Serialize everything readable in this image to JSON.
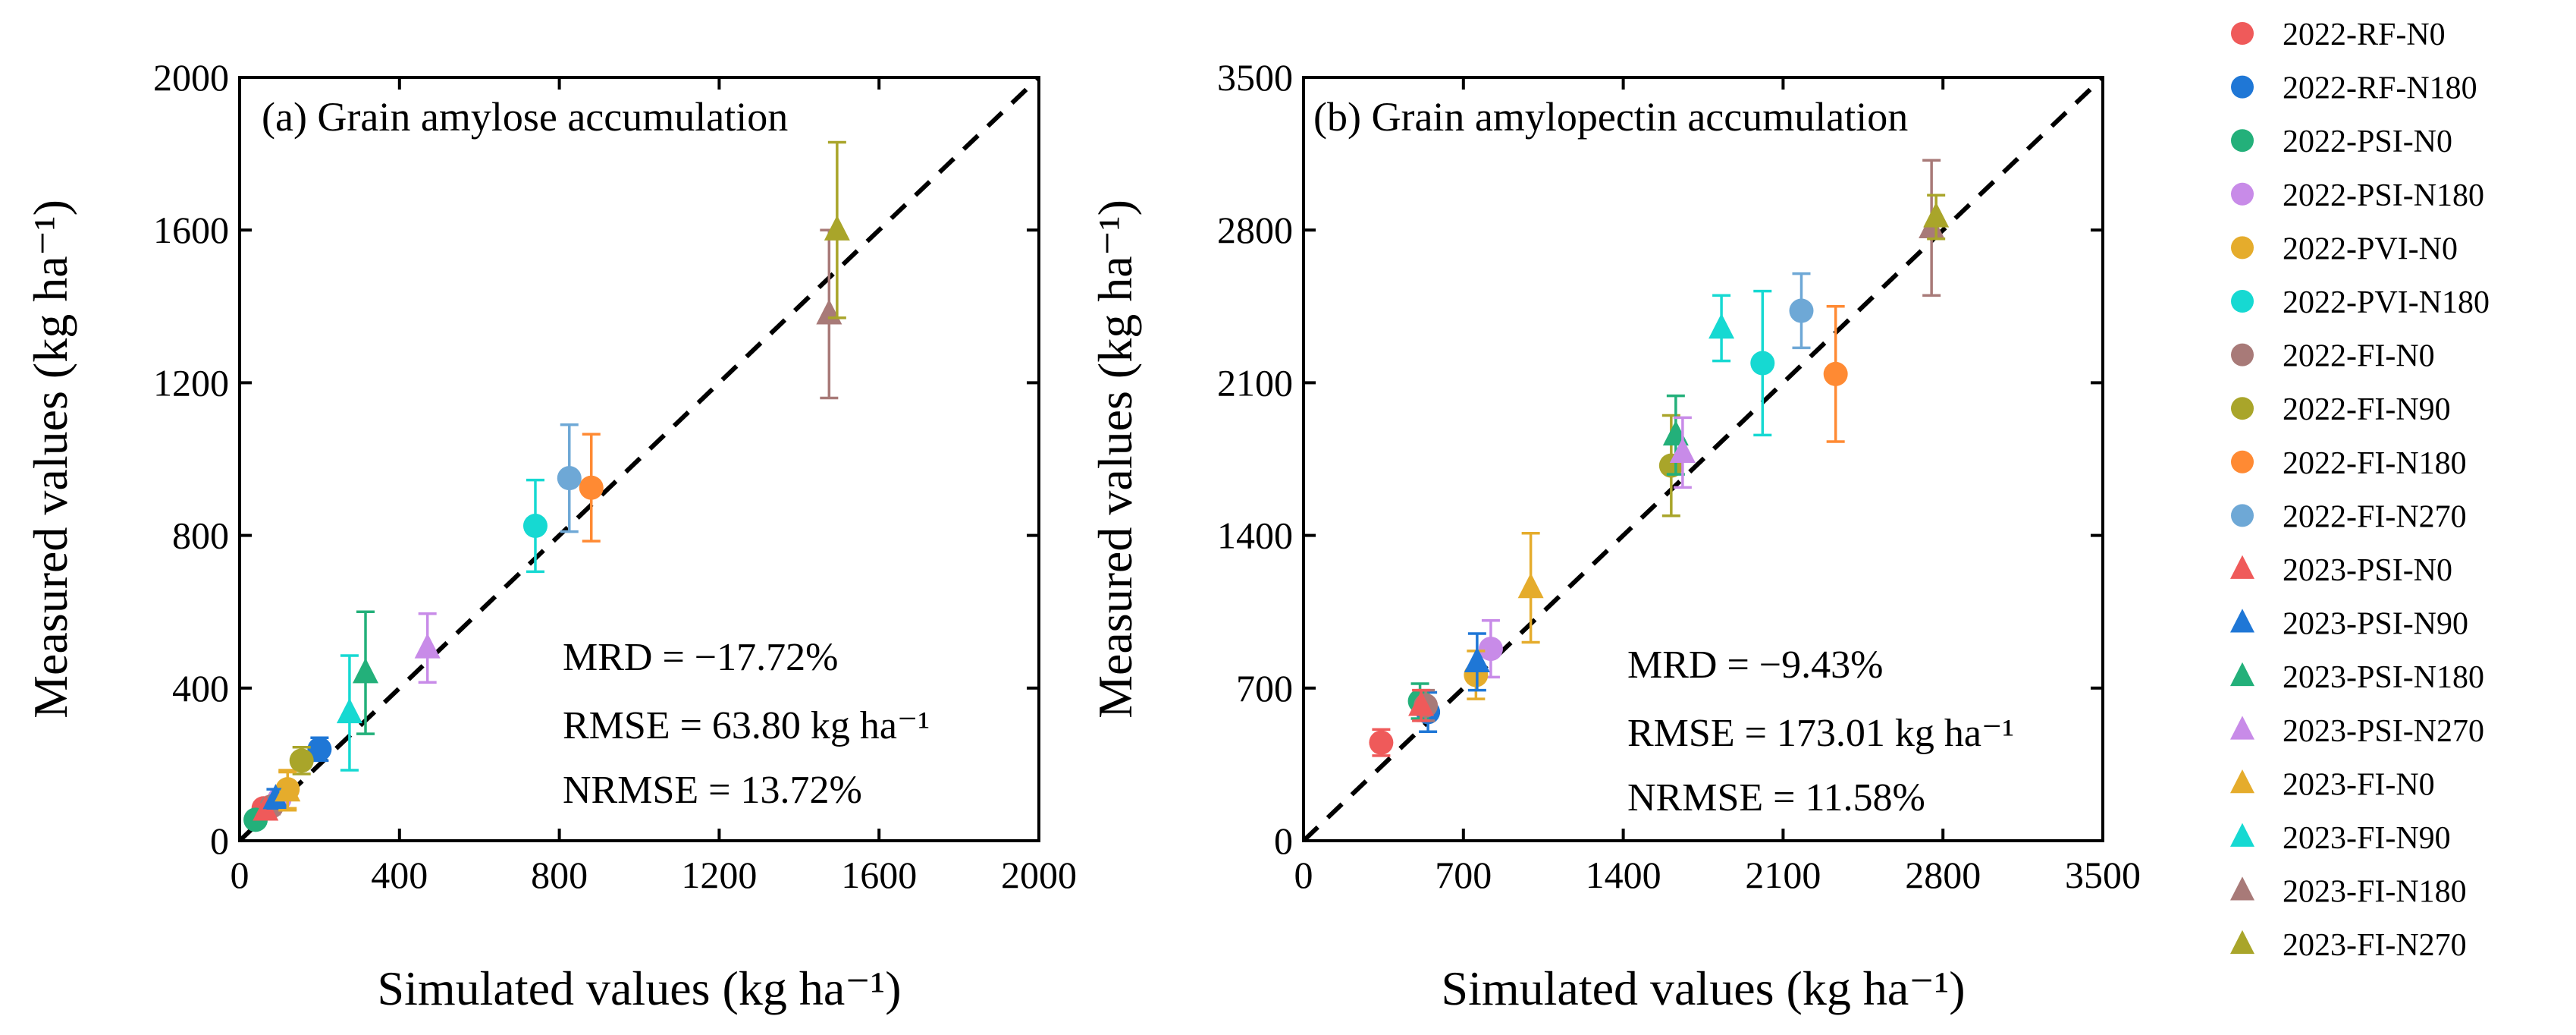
{
  "chart_data": [
    {
      "type": "scatter",
      "title": "(a) Grain amylose accumulation",
      "xlabel": "Simulated values (kg ha⁻¹)",
      "ylabel": "Measured values (kg ha⁻¹)",
      "xlim": [
        0,
        2000
      ],
      "ylim": [
        0,
        2000
      ],
      "xticks": [
        "0",
        "400",
        "800",
        "1200",
        "1600",
        "2000"
      ],
      "yticks": [
        "0",
        "400",
        "800",
        "1200",
        "1600",
        "2000"
      ],
      "reference_line": "1:1 dashed",
      "stats": [
        "MRD = −17.72%",
        "RMSE = 63.80 kg ha⁻¹",
        "NRMSE = 13.72%"
      ],
      "points": [
        {
          "series": "2022-RF-N0",
          "x": 60,
          "y": 85,
          "err": 15
        },
        {
          "series": "2022-RF-N180",
          "x": 200,
          "y": 240,
          "err": 30
        },
        {
          "series": "2022-PSI-N0",
          "x": 40,
          "y": 55,
          "err": 10
        },
        {
          "series": "2022-PSI-N180",
          "x": 100,
          "y": 110,
          "err": 25
        },
        {
          "series": "2022-PVI-N0",
          "x": 120,
          "y": 135,
          "err": 50
        },
        {
          "series": "2022-PVI-N180",
          "x": 740,
          "y": 825,
          "err": 120
        },
        {
          "series": "2022-FI-N0",
          "x": 80,
          "y": 90,
          "err": 20
        },
        {
          "series": "2022-FI-N90",
          "x": 155,
          "y": 210,
          "err": 35
        },
        {
          "series": "2022-FI-N180",
          "x": 880,
          "y": 925,
          "err": 140
        },
        {
          "series": "2022-FI-N270",
          "x": 825,
          "y": 950,
          "err": 140
        },
        {
          "series": "2023-PSI-N0",
          "x": 65,
          "y": 80,
          "err": 15
        },
        {
          "series": "2023-PSI-N90",
          "x": 90,
          "y": 110,
          "err": 25
        },
        {
          "series": "2023-PSI-N180",
          "x": 315,
          "y": 440,
          "err": 160
        },
        {
          "series": "2023-PSI-N270",
          "x": 470,
          "y": 505,
          "err": 90
        },
        {
          "series": "2023-FI-N0",
          "x": 120,
          "y": 130,
          "err": 50
        },
        {
          "series": "2023-FI-N90",
          "x": 275,
          "y": 335,
          "err": 150
        },
        {
          "series": "2023-FI-N180",
          "x": 1475,
          "y": 1380,
          "err": 220
        },
        {
          "series": "2023-FI-N270",
          "x": 1495,
          "y": 1600,
          "err": 230
        }
      ]
    },
    {
      "type": "scatter",
      "title": "(b) Grain amylopectin accumulation",
      "xlabel": "Simulated values (kg ha⁻¹)",
      "ylabel": "Measured values (kg ha⁻¹)",
      "xlim": [
        0,
        3500
      ],
      "ylim": [
        0,
        3500
      ],
      "xticks": [
        "0",
        "700",
        "1400",
        "2100",
        "2800",
        "3500"
      ],
      "yticks": [
        "0",
        "700",
        "1400",
        "2100",
        "2800",
        "3500"
      ],
      "reference_line": "1:1 dashed",
      "stats": [
        "MRD = −9.43%",
        "RMSE = 173.01 kg ha⁻¹",
        "NRMSE = 11.58%"
      ],
      "points": [
        {
          "series": "2022-RF-N0",
          "x": 340,
          "y": 450,
          "err": 60
        },
        {
          "series": "2022-RF-N180",
          "x": 545,
          "y": 590,
          "err": 90
        },
        {
          "series": "2022-PSI-N0",
          "x": 510,
          "y": 640,
          "err": 80
        },
        {
          "series": "2022-PSI-N180",
          "x": 820,
          "y": 880,
          "err": 130
        },
        {
          "series": "2022-PVI-N0",
          "x": 755,
          "y": 760,
          "err": 110
        },
        {
          "series": "2022-PVI-N180",
          "x": 2010,
          "y": 2190,
          "err": 330
        },
        {
          "series": "2022-FI-N0",
          "x": 535,
          "y": 620,
          "err": 70
        },
        {
          "series": "2022-FI-N90",
          "x": 1610,
          "y": 1720,
          "err": 230
        },
        {
          "series": "2022-FI-N180",
          "x": 2330,
          "y": 2140,
          "err": 310
        },
        {
          "series": "2022-FI-N270",
          "x": 2180,
          "y": 2430,
          "err": 170
        },
        {
          "series": "2023-PSI-N0",
          "x": 515,
          "y": 620,
          "err": 70
        },
        {
          "series": "2023-PSI-N90",
          "x": 760,
          "y": 820,
          "err": 130
        },
        {
          "series": "2023-PSI-N180",
          "x": 1630,
          "y": 1860,
          "err": 180
        },
        {
          "series": "2023-PSI-N270",
          "x": 1660,
          "y": 1780,
          "err": 160
        },
        {
          "series": "2023-FI-N0",
          "x": 995,
          "y": 1160,
          "err": 250
        },
        {
          "series": "2023-FI-N90",
          "x": 1830,
          "y": 2350,
          "err": 150
        },
        {
          "series": "2023-FI-N180",
          "x": 2750,
          "y": 2810,
          "err": 310
        },
        {
          "series": "2023-FI-N270",
          "x": 2770,
          "y": 2860,
          "err": 100
        }
      ]
    }
  ],
  "legend": [
    {
      "label": "2022-RF-N0",
      "color": "#ef5a5a",
      "marker": "circle"
    },
    {
      "label": "2022-RF-N180",
      "color": "#1f77d6",
      "marker": "circle"
    },
    {
      "label": "2022-PSI-N0",
      "color": "#23b07a",
      "marker": "circle"
    },
    {
      "label": "2022-PSI-N180",
      "color": "#c88be8",
      "marker": "circle"
    },
    {
      "label": "2022-PVI-N0",
      "color": "#e5ac2c",
      "marker": "circle"
    },
    {
      "label": "2022-PVI-N180",
      "color": "#16d9d2",
      "marker": "circle"
    },
    {
      "label": "2022-FI-N0",
      "color": "#a87a78",
      "marker": "circle"
    },
    {
      "label": "2022-FI-N90",
      "color": "#a9a52a",
      "marker": "circle"
    },
    {
      "label": "2022-FI-N180",
      "color": "#ff8a33",
      "marker": "circle"
    },
    {
      "label": "2022-FI-N270",
      "color": "#6ea8d6",
      "marker": "circle"
    },
    {
      "label": "2023-PSI-N0",
      "color": "#ef5a5a",
      "marker": "triangle"
    },
    {
      "label": "2023-PSI-N90",
      "color": "#1f77d6",
      "marker": "triangle"
    },
    {
      "label": "2023-PSI-N180",
      "color": "#23b07a",
      "marker": "triangle"
    },
    {
      "label": "2023-PSI-N270",
      "color": "#c88be8",
      "marker": "triangle"
    },
    {
      "label": "2023-FI-N0",
      "color": "#e5ac2c",
      "marker": "triangle"
    },
    {
      "label": "2023-FI-N90",
      "color": "#16d9d2",
      "marker": "triangle"
    },
    {
      "label": "2023-FI-N180",
      "color": "#a87a78",
      "marker": "triangle"
    },
    {
      "label": "2023-FI-N270",
      "color": "#a9a52a",
      "marker": "triangle"
    }
  ]
}
